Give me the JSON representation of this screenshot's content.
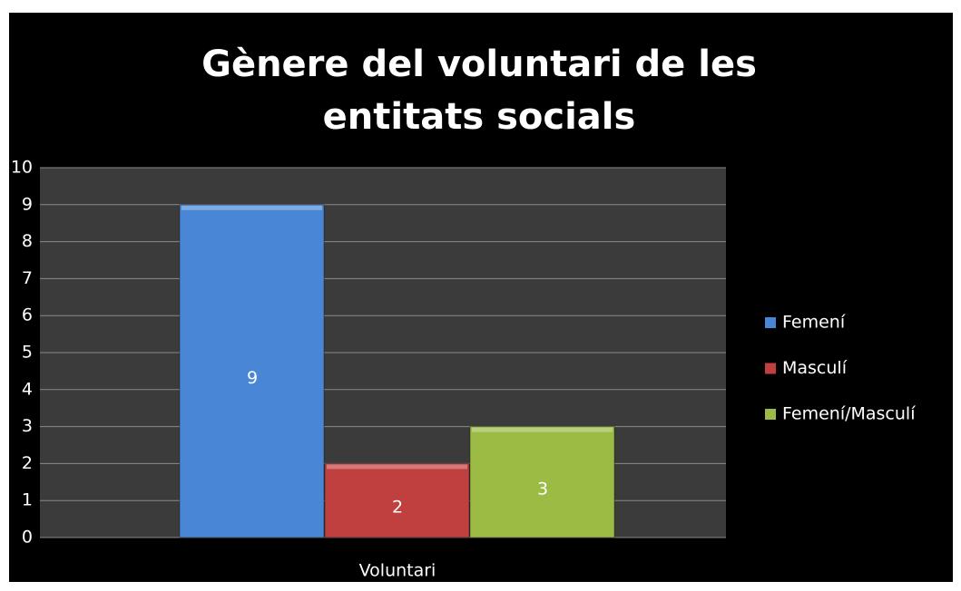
{
  "chart_data": {
    "type": "bar",
    "title": "Gènere del voluntari de les entitats socials",
    "categories": [
      "Voluntari"
    ],
    "series": [
      {
        "name": "Femení",
        "color": "#4a86d6",
        "values": [
          9
        ]
      },
      {
        "name": "Masculí",
        "color": "#c0403f",
        "values": [
          2
        ]
      },
      {
        "name": "Femení/Masculí",
        "color": "#9bbb44",
        "values": [
          3
        ]
      }
    ],
    "ylim": [
      0,
      10
    ],
    "yticks": [
      0,
      1,
      2,
      3,
      4,
      5,
      6,
      7,
      8,
      9,
      10
    ],
    "grid": true,
    "legend": "right"
  }
}
